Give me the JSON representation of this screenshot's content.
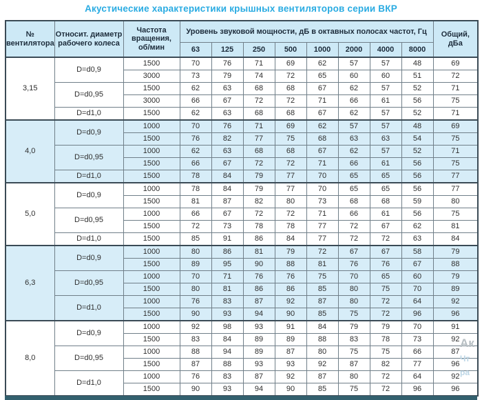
{
  "title": "Акустические характеристики крышных вентиляторов серии ВКР",
  "colors": {
    "title_accent": "#29abe2",
    "header_bg": "#cde9f6",
    "shaded_band_bg": "#d7edf8",
    "outer_border": "#3a4a55",
    "bottom_bar": "#33606e"
  },
  "watermark": {
    "line1": "Ак",
    "line2": "Чт",
    "line3": "ра"
  },
  "table": {
    "headers": {
      "fan_number": "№\nвентилятора",
      "diameter": "Относит. диаметр\nрабочего колеса",
      "rpm": "Частота\nвращения,\nоб/мин",
      "spl_group": "Уровень звуковой мощности, дБ в октавных полосах частот, Гц",
      "frequencies": [
        "63",
        "125",
        "250",
        "500",
        "1000",
        "2000",
        "4000",
        "8000"
      ],
      "total": "Общий,\nдБа"
    },
    "groups": [
      {
        "fan": "3,15",
        "shaded": false,
        "subgroups": [
          {
            "diameter": "D=d0,9",
            "rows": [
              {
                "rpm": "1500",
                "levels": [
                  70,
                  76,
                  71,
                  69,
                  62,
                  57,
                  57,
                  48
                ],
                "total": 69
              },
              {
                "rpm": "3000",
                "levels": [
                  73,
                  79,
                  74,
                  72,
                  65,
                  60,
                  60,
                  51
                ],
                "total": 72
              }
            ]
          },
          {
            "diameter": "D=d0,95",
            "rows": [
              {
                "rpm": "1500",
                "levels": [
                  62,
                  63,
                  68,
                  68,
                  67,
                  62,
                  57,
                  52
                ],
                "total": 71
              },
              {
                "rpm": "3000",
                "levels": [
                  66,
                  67,
                  72,
                  72,
                  71,
                  66,
                  61,
                  56
                ],
                "total": 75
              }
            ]
          },
          {
            "diameter": "D=d1,0",
            "rows": [
              {
                "rpm": "1500",
                "levels": [
                  62,
                  63,
                  68,
                  68,
                  67,
                  62,
                  57,
                  52
                ],
                "total": 71
              }
            ]
          }
        ]
      },
      {
        "fan": "4,0",
        "shaded": true,
        "subgroups": [
          {
            "diameter": "D=d0,9",
            "rows": [
              {
                "rpm": "1000",
                "levels": [
                  70,
                  76,
                  71,
                  69,
                  62,
                  57,
                  57,
                  48
                ],
                "total": 69
              },
              {
                "rpm": "1500",
                "levels": [
                  76,
                  82,
                  77,
                  75,
                  68,
                  63,
                  63,
                  54
                ],
                "total": 75
              }
            ]
          },
          {
            "diameter": "D=d0,95",
            "rows": [
              {
                "rpm": "1000",
                "levels": [
                  62,
                  63,
                  68,
                  68,
                  67,
                  62,
                  57,
                  52
                ],
                "total": 71
              },
              {
                "rpm": "1500",
                "levels": [
                  66,
                  67,
                  72,
                  72,
                  71,
                  66,
                  61,
                  56
                ],
                "total": 75
              }
            ]
          },
          {
            "diameter": "D=d1,0",
            "rows": [
              {
                "rpm": "1500",
                "levels": [
                  78,
                  84,
                  79,
                  77,
                  70,
                  65,
                  65,
                  56
                ],
                "total": 77
              }
            ]
          }
        ]
      },
      {
        "fan": "5,0",
        "shaded": false,
        "subgroups": [
          {
            "diameter": "D=d0,9",
            "rows": [
              {
                "rpm": "1000",
                "levels": [
                  78,
                  84,
                  79,
                  77,
                  70,
                  65,
                  65,
                  56
                ],
                "total": 77
              },
              {
                "rpm": "1500",
                "levels": [
                  81,
                  87,
                  82,
                  80,
                  73,
                  68,
                  68,
                  59
                ],
                "total": 80
              }
            ]
          },
          {
            "diameter": "D=d0,95",
            "rows": [
              {
                "rpm": "1000",
                "levels": [
                  66,
                  67,
                  72,
                  72,
                  71,
                  66,
                  61,
                  56
                ],
                "total": 75
              },
              {
                "rpm": "1500",
                "levels": [
                  72,
                  73,
                  78,
                  78,
                  77,
                  72,
                  67,
                  62
                ],
                "total": 81
              }
            ]
          },
          {
            "diameter": "D=d1,0",
            "rows": [
              {
                "rpm": "1500",
                "levels": [
                  85,
                  91,
                  86,
                  84,
                  77,
                  72,
                  72,
                  63
                ],
                "total": 84
              }
            ]
          }
        ]
      },
      {
        "fan": "6,3",
        "shaded": true,
        "subgroups": [
          {
            "diameter": "D=d0,9",
            "rows": [
              {
                "rpm": "1000",
                "levels": [
                  80,
                  86,
                  81,
                  79,
                  72,
                  67,
                  67,
                  58
                ],
                "total": 79
              },
              {
                "rpm": "1500",
                "levels": [
                  89,
                  95,
                  90,
                  88,
                  81,
                  76,
                  76,
                  67
                ],
                "total": 88
              }
            ]
          },
          {
            "diameter": "D=d0,95",
            "rows": [
              {
                "rpm": "1000",
                "levels": [
                  70,
                  71,
                  76,
                  76,
                  75,
                  70,
                  65,
                  60
                ],
                "total": 79
              },
              {
                "rpm": "1500",
                "levels": [
                  80,
                  81,
                  86,
                  86,
                  85,
                  80,
                  75,
                  70
                ],
                "total": 89
              }
            ]
          },
          {
            "diameter": "D=d1,0",
            "rows": [
              {
                "rpm": "1000",
                "levels": [
                  76,
                  83,
                  87,
                  92,
                  87,
                  80,
                  72,
                  64
                ],
                "total": 92
              },
              {
                "rpm": "1500",
                "levels": [
                  90,
                  93,
                  94,
                  90,
                  85,
                  75,
                  72,
                  96
                ],
                "total": 96
              }
            ]
          }
        ]
      },
      {
        "fan": "8,0",
        "shaded": false,
        "subgroups": [
          {
            "diameter": "D=d0,9",
            "rows": [
              {
                "rpm": "1000",
                "levels": [
                  92,
                  98,
                  93,
                  91,
                  84,
                  79,
                  79,
                  70
                ],
                "total": 91
              },
              {
                "rpm": "1500",
                "levels": [
                  83,
                  84,
                  89,
                  89,
                  88,
                  83,
                  78,
                  73
                ],
                "total": 92
              }
            ]
          },
          {
            "diameter": "D=d0,95",
            "rows": [
              {
                "rpm": "1000",
                "levels": [
                  88,
                  94,
                  89,
                  87,
                  80,
                  75,
                  75,
                  66
                ],
                "total": 87
              },
              {
                "rpm": "1500",
                "levels": [
                  87,
                  88,
                  93,
                  93,
                  92,
                  87,
                  82,
                  77
                ],
                "total": 96
              }
            ]
          },
          {
            "diameter": "D=d1,0",
            "rows": [
              {
                "rpm": "1000",
                "levels": [
                  76,
                  83,
                  87,
                  92,
                  87,
                  80,
                  72,
                  64
                ],
                "total": 92
              },
              {
                "rpm": "1500",
                "levels": [
                  90,
                  93,
                  94,
                  90,
                  85,
                  75,
                  72,
                  96
                ],
                "total": 96
              }
            ]
          }
        ]
      }
    ]
  }
}
